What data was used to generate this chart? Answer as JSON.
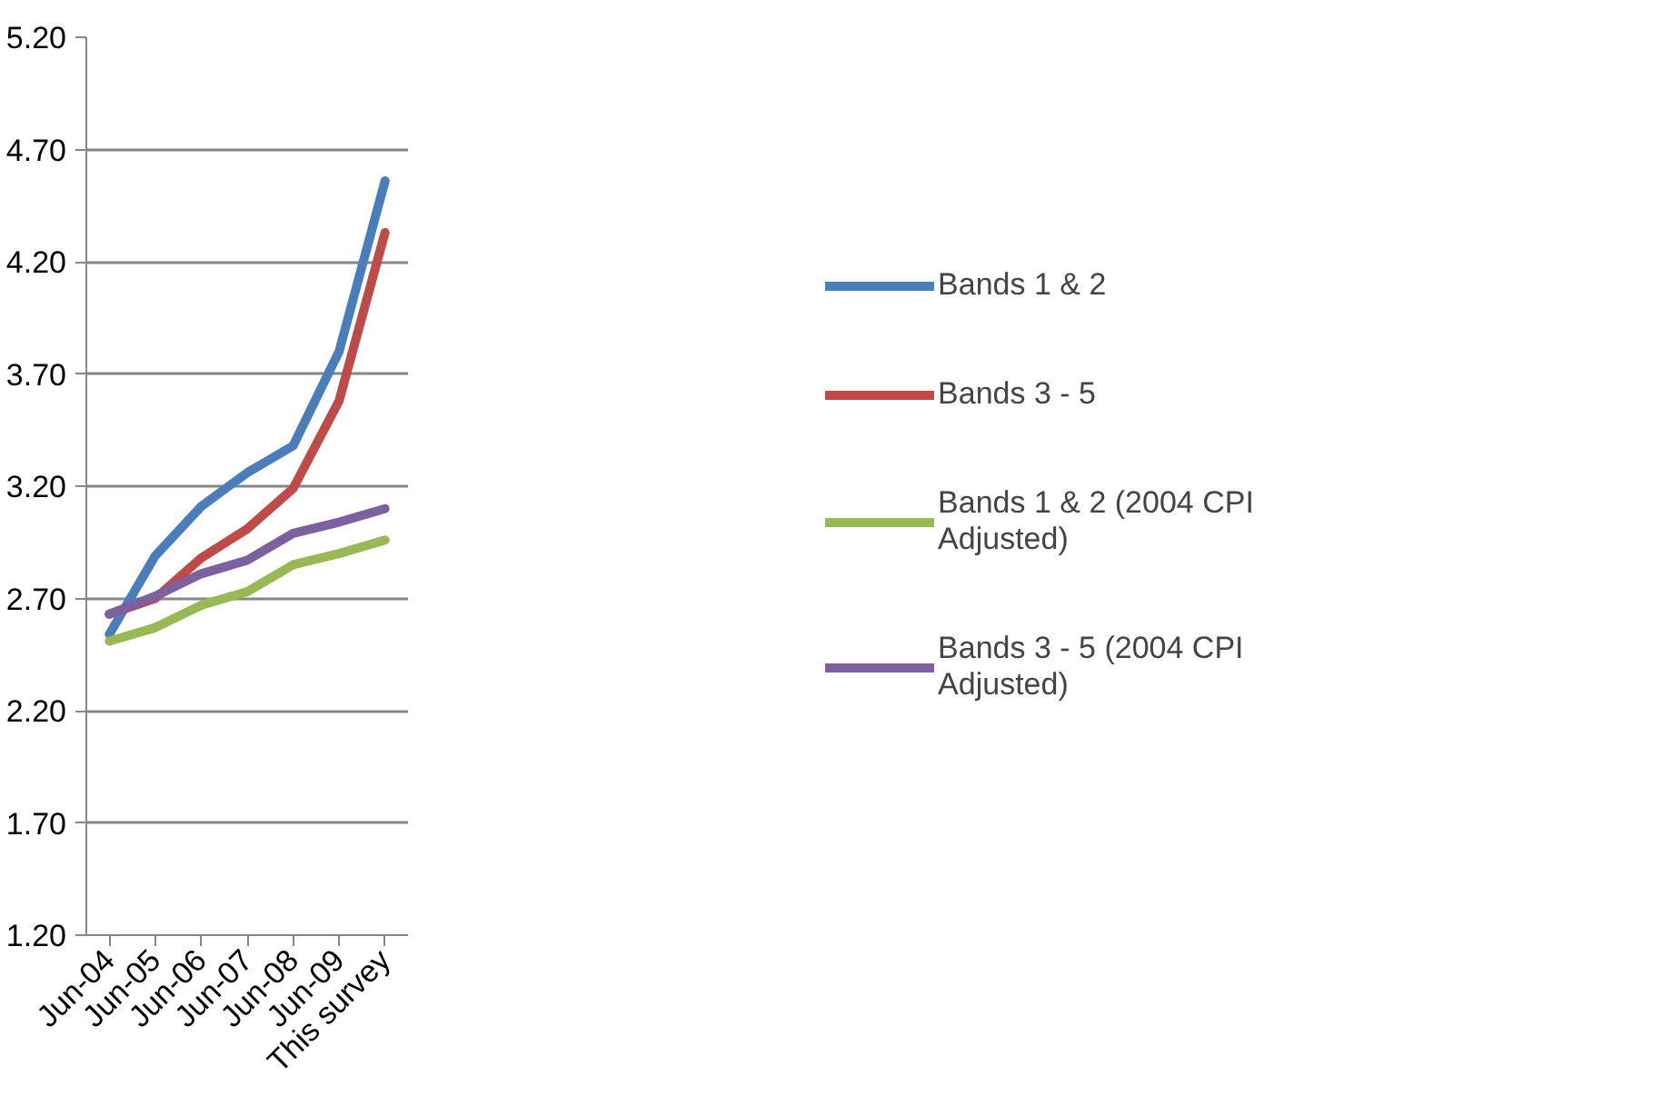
{
  "chart_data": {
    "type": "line",
    "categories": [
      "Jun-04",
      "Jun-05",
      "Jun-06",
      "Jun-07",
      "Jun-08",
      "Jun-09",
      "This survey"
    ],
    "series": [
      {
        "name": "Bands 1 & 2",
        "color": "#4a7ebb",
        "values": [
          2.54,
          2.89,
          3.11,
          3.26,
          3.38,
          3.8,
          4.56
        ]
      },
      {
        "name": "Bands 3 - 5",
        "color": "#be4b48",
        "values": [
          2.63,
          2.7,
          2.88,
          3.01,
          3.19,
          3.58,
          4.33
        ]
      },
      {
        "name": "Bands 1 & 2 (2004 CPI Adjusted)",
        "color": "#98b954",
        "values": [
          2.51,
          2.57,
          2.67,
          2.73,
          2.85,
          2.9,
          2.96
        ]
      },
      {
        "name": "Bands 3 - 5 (2004 CPI Adjusted)",
        "color": "#7d60a0",
        "values": [
          2.63,
          2.71,
          2.81,
          2.87,
          2.99,
          3.04,
          3.1
        ]
      }
    ],
    "ylim": [
      1.2,
      5.2
    ],
    "yticks": [
      {
        "value": 1.2,
        "label": "1.20"
      },
      {
        "value": 1.7,
        "label": "1.70"
      },
      {
        "value": 2.2,
        "label": "2.20"
      },
      {
        "value": 2.7,
        "label": "2.70"
      },
      {
        "value": 3.2,
        "label": "3.20"
      },
      {
        "value": 3.7,
        "label": "3.70"
      },
      {
        "value": 4.2,
        "label": "4.20"
      },
      {
        "value": 4.7,
        "label": "4.70"
      },
      {
        "value": 5.2,
        "label": "5.20"
      }
    ],
    "grid": "y",
    "legend": "right",
    "line_style": "solid",
    "marker": "none"
  }
}
